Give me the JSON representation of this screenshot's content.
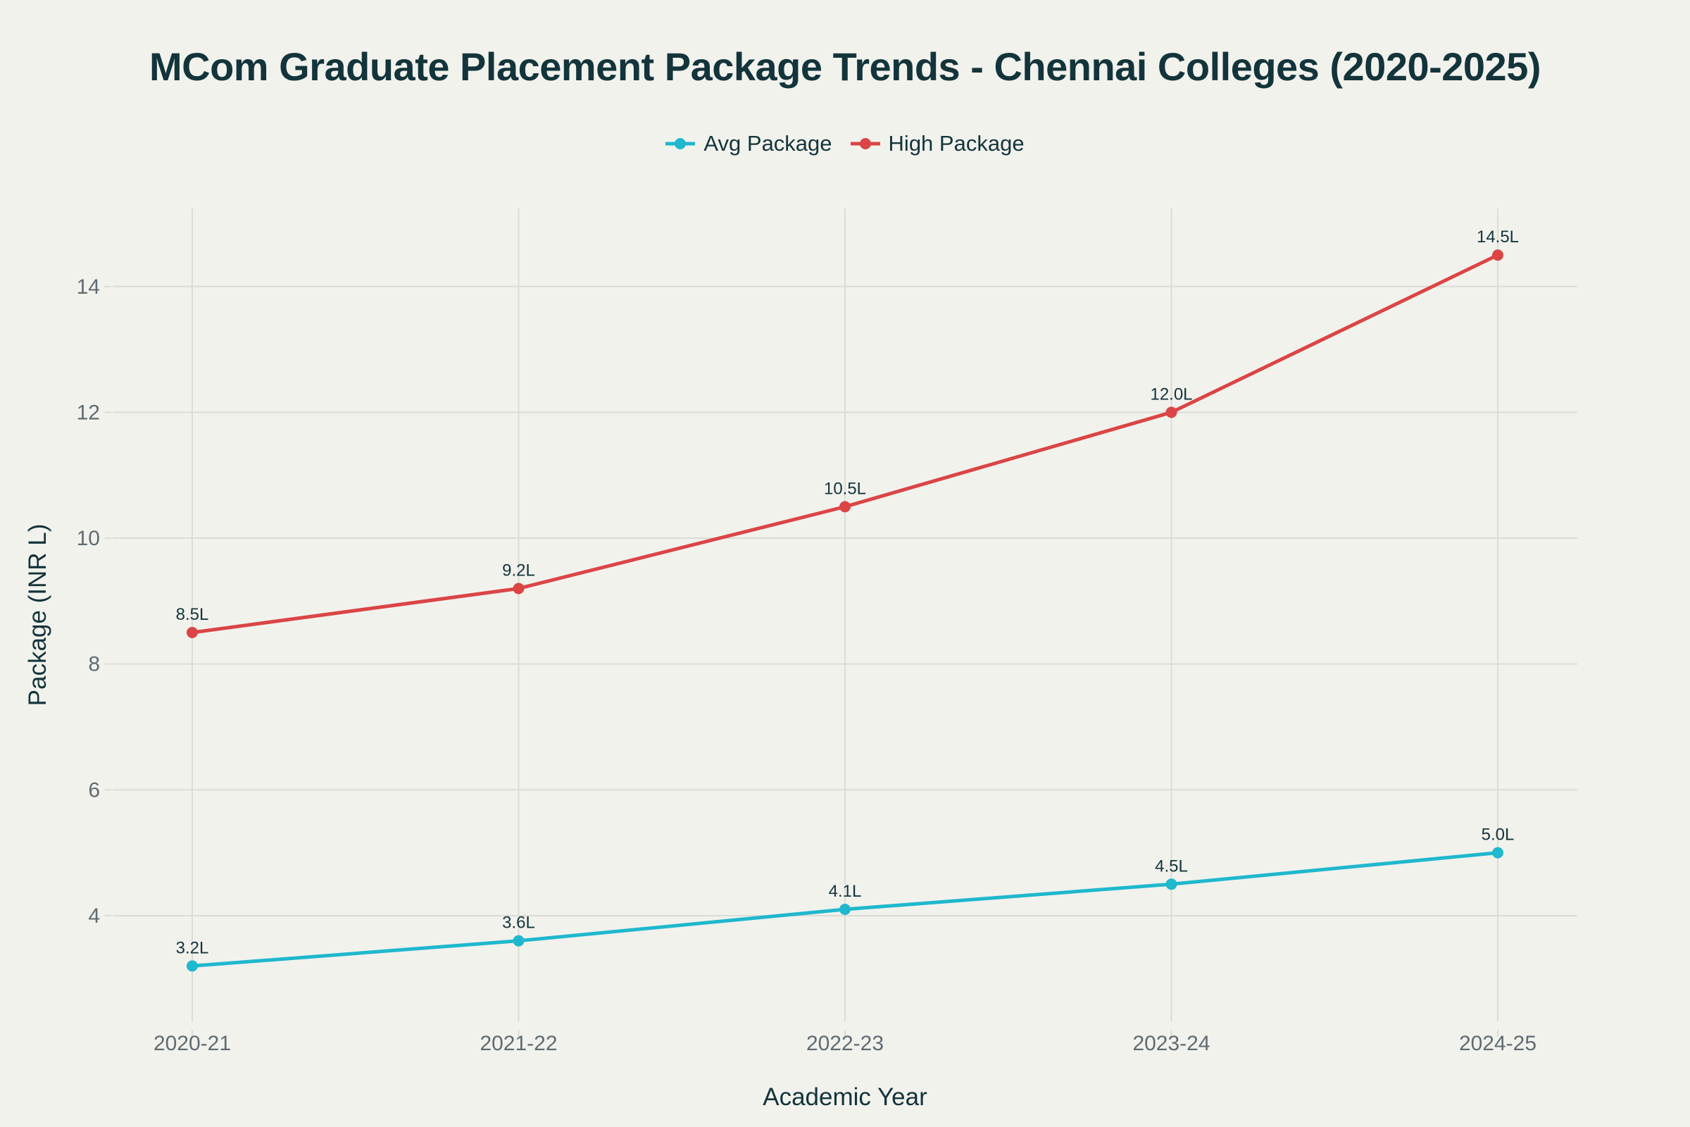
{
  "chart_data": {
    "type": "line",
    "title": "MCom Graduate Placement Package Trends - Chennai Colleges (2020-2025)",
    "xlabel": "Academic Year",
    "ylabel": "Package (INR L)",
    "categories": [
      "2020-21",
      "2021-22",
      "2022-23",
      "2023-24",
      "2024-25"
    ],
    "series": [
      {
        "name": "Avg Package",
        "color": "#1fb8cd",
        "values": [
          3.2,
          3.6,
          4.1,
          4.5,
          5.0
        ],
        "labels": [
          "3.2L",
          "3.6L",
          "4.1L",
          "4.5L",
          "5.0L"
        ]
      },
      {
        "name": "High Package",
        "color": "#db4545",
        "values": [
          8.5,
          9.2,
          10.5,
          12.0,
          14.5
        ],
        "labels": [
          "8.5L",
          "9.2L",
          "10.5L",
          "12.0L",
          "14.5L"
        ]
      }
    ],
    "ylim": [
      2.32,
      15.24
    ],
    "yticks": [
      4,
      6,
      8,
      10,
      12,
      14
    ],
    "grid": true,
    "legend_position": "top-center",
    "markers": true
  }
}
